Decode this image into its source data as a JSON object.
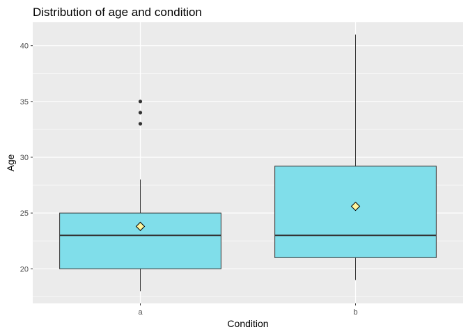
{
  "chart_data": {
    "type": "boxplot",
    "title": "Distribution of age and condition",
    "xlabel": "Condition",
    "ylabel": "Age",
    "categories": [
      "a",
      "b"
    ],
    "ylim": [
      16.9,
      42.1
    ],
    "yticks": [
      20,
      25,
      30,
      35,
      40
    ],
    "grid": true,
    "boxes": [
      {
        "category": "a",
        "whisker_low": 18,
        "q1": 20,
        "median": 23,
        "q3": 25,
        "whisker_high": 28,
        "mean": 23.8,
        "outliers": [
          33,
          34,
          35
        ]
      },
      {
        "category": "b",
        "whisker_low": 19,
        "q1": 21,
        "median": 23,
        "q3": 29.2,
        "whisker_high": 41,
        "mean": 25.6,
        "outliers": []
      }
    ],
    "colors": {
      "panel": "#ebebeb",
      "grid": "#ffffff",
      "box_fill": "#80deea",
      "box_stroke": "#333333",
      "mean_fill": "#fff59d",
      "outlier": "#333333"
    }
  }
}
